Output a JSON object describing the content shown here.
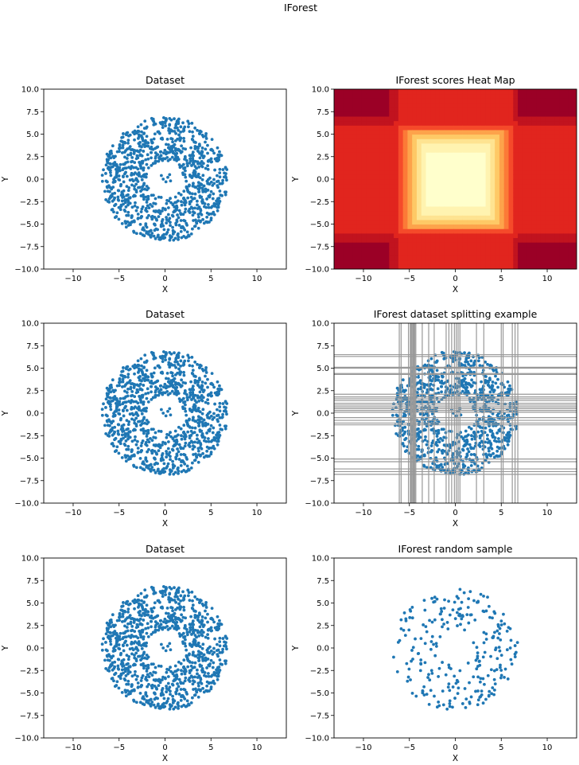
{
  "figure": {
    "suptitle": "IForest"
  },
  "colors": {
    "points": "#1f77b4",
    "split_lines": "#999999",
    "heat_levels": [
      "#ffffcc",
      "#fff3b0",
      "#fee391",
      "#fec966",
      "#fda34b",
      "#fc7a37",
      "#f54a2a",
      "#e1251e",
      "#c1131f",
      "#9b0026"
    ]
  },
  "chart_data": [
    {
      "type": "scatter",
      "title": "Dataset",
      "xlabel": "X",
      "ylabel": "Y",
      "xlim": [
        -13.2,
        13.2
      ],
      "ylim": [
        -10,
        10
      ],
      "xticks": [
        -10,
        -5,
        0,
        5,
        10
      ],
      "yticks": [
        -10.0,
        -7.5,
        -5.0,
        -2.5,
        0.0,
        2.5,
        5.0,
        7.5,
        10.0
      ],
      "xtick_labels": [
        "−10",
        "−5",
        "0",
        "5",
        "10"
      ],
      "ytick_labels": [
        "−10.0",
        "−7.5",
        "−5.0",
        "−2.5",
        "0.0",
        "2.5",
        "5.0",
        "7.5",
        "10.0"
      ],
      "series": [
        {
          "distribution": "annulus",
          "center": [
            0,
            0
          ],
          "inner_radius": 2.0,
          "outer_radius": 6.9,
          "n_points": 1000,
          "inner_cluster": [
            [
              -0.4,
              0.4
            ],
            [
              0.3,
              0.2
            ],
            [
              0.1,
              -0.3
            ],
            [
              0.6,
              -0.2
            ],
            [
              -0.2,
              0.0
            ],
            [
              0.5,
              0.5
            ]
          ]
        }
      ],
      "grid": false,
      "legend": "none"
    },
    {
      "type": "heatmap",
      "title": "IForest scores Heat Map",
      "xlabel": "X",
      "ylabel": "Y",
      "xlim": [
        -13.2,
        13.2
      ],
      "ylim": [
        -10,
        10
      ],
      "xticks": [
        -10,
        -5,
        0,
        5,
        10
      ],
      "yticks": [
        -10.0,
        -7.5,
        -5.0,
        -2.5,
        0.0,
        2.5,
        5.0,
        7.5,
        10.0
      ],
      "xtick_labels": [
        "−10",
        "−5",
        "0",
        "5",
        "10"
      ],
      "ytick_labels": [
        "−10.0",
        "−7.5",
        "−5.0",
        "−2.5",
        "0.0",
        "2.5",
        "5.0",
        "7.5",
        "10.0"
      ],
      "levels": 10,
      "score_range": [
        0.35,
        0.75
      ],
      "grid": false,
      "legend": "none"
    },
    {
      "type": "scatter",
      "title": "Dataset",
      "xlabel": "X",
      "ylabel": "Y",
      "xlim": [
        -13.2,
        13.2
      ],
      "ylim": [
        -10,
        10
      ],
      "xticks": [
        -10,
        -5,
        0,
        5,
        10
      ],
      "yticks": [
        -10.0,
        -7.5,
        -5.0,
        -2.5,
        0.0,
        2.5,
        5.0,
        7.5,
        10.0
      ],
      "xtick_labels": [
        "−10",
        "−5",
        "0",
        "5",
        "10"
      ],
      "ytick_labels": [
        "−10.0",
        "−7.5",
        "−5.0",
        "−2.5",
        "0.0",
        "2.5",
        "5.0",
        "7.5",
        "10.0"
      ],
      "series": [
        {
          "distribution": "annulus",
          "center": [
            0,
            0
          ],
          "inner_radius": 2.0,
          "outer_radius": 6.9,
          "n_points": 1000,
          "inner_cluster": [
            [
              -0.4,
              0.4
            ],
            [
              0.3,
              0.2
            ],
            [
              0.1,
              -0.3
            ],
            [
              0.6,
              -0.2
            ],
            [
              -0.2,
              0.0
            ],
            [
              0.5,
              0.5
            ]
          ]
        }
      ],
      "grid": false,
      "legend": "none"
    },
    {
      "type": "scatter",
      "title": "IForest dataset splitting example",
      "xlabel": "X",
      "ylabel": "Y",
      "xlim": [
        -13.2,
        13.2
      ],
      "ylim": [
        -10,
        10
      ],
      "xticks": [
        -10,
        -5,
        0,
        5,
        10
      ],
      "yticks": [
        -10.0,
        -7.5,
        -5.0,
        -2.5,
        0.0,
        2.5,
        5.0,
        7.5,
        10.0
      ],
      "xtick_labels": [
        "−10",
        "−5",
        "0",
        "5",
        "10"
      ],
      "ytick_labels": [
        "−10.0",
        "−7.5",
        "−5.0",
        "−2.5",
        "0.0",
        "2.5",
        "5.0",
        "7.5",
        "10.0"
      ],
      "series": [
        {
          "distribution": "annulus",
          "center": [
            0,
            0
          ],
          "inner_radius": 2.0,
          "outer_radius": 6.9,
          "n_points": 1000,
          "inner_cluster": [
            [
              -0.4,
              0.4
            ],
            [
              0.3,
              0.2
            ],
            [
              0.1,
              -0.3
            ],
            [
              0.6,
              -0.2
            ],
            [
              -0.2,
              0.0
            ],
            [
              0.5,
              0.5
            ]
          ]
        }
      ],
      "vertical_splits": [
        -6.1,
        -5.9,
        -5.1,
        -4.9,
        -4.8,
        -4.7,
        -4.6,
        -4.5,
        -4.4,
        -4.3,
        -3.6,
        -2.9,
        -2.3,
        -1.0,
        -0.7,
        -0.4,
        -0.1,
        0.1,
        0.3,
        0.5,
        2.3,
        3.1,
        5.0,
        5.2,
        6.2,
        6.5,
        6.8
      ],
      "horizontal_splits": [
        6.5,
        6.3,
        5.1,
        5.0,
        4.4,
        4.3,
        2.1,
        1.8,
        1.6,
        1.4,
        1.1,
        0.9,
        0.7,
        0.5,
        0.3,
        0.1,
        -0.5,
        -0.8,
        -1.1,
        -1.3,
        -5.1,
        -5.4,
        -6.2,
        -6.5,
        -6.8
      ],
      "grid": false,
      "legend": "none"
    },
    {
      "type": "scatter",
      "title": "Dataset",
      "xlabel": "X",
      "ylabel": "Y",
      "xlim": [
        -13.2,
        13.2
      ],
      "ylim": [
        -10,
        10
      ],
      "xticks": [
        -10,
        -5,
        0,
        5,
        10
      ],
      "yticks": [
        -10.0,
        -7.5,
        -5.0,
        -2.5,
        0.0,
        2.5,
        5.0,
        7.5,
        10.0
      ],
      "xtick_labels": [
        "−10",
        "−5",
        "0",
        "5",
        "10"
      ],
      "ytick_labels": [
        "−10.0",
        "−7.5",
        "−5.0",
        "−2.5",
        "0.0",
        "2.5",
        "5.0",
        "7.5",
        "10.0"
      ],
      "series": [
        {
          "distribution": "annulus",
          "center": [
            0,
            0
          ],
          "inner_radius": 2.0,
          "outer_radius": 6.9,
          "n_points": 1000,
          "inner_cluster": [
            [
              -0.4,
              0.4
            ],
            [
              0.3,
              0.2
            ],
            [
              0.1,
              -0.3
            ],
            [
              0.6,
              -0.2
            ],
            [
              -0.2,
              0.0
            ],
            [
              0.5,
              0.5
            ]
          ]
        }
      ],
      "grid": false,
      "legend": "none"
    },
    {
      "type": "scatter",
      "title": "IForest random sample",
      "xlabel": "X",
      "ylabel": "Y",
      "xlim": [
        -13.2,
        13.2
      ],
      "ylim": [
        -10,
        10
      ],
      "xticks": [
        -10,
        -5,
        0,
        5,
        10
      ],
      "yticks": [
        -10.0,
        -7.5,
        -5.0,
        -2.5,
        0.0,
        2.5,
        5.0,
        7.5,
        10.0
      ],
      "xtick_labels": [
        "−10",
        "−5",
        "0",
        "5",
        "10"
      ],
      "ytick_labels": [
        "−10.0",
        "−7.5",
        "−5.0",
        "−2.5",
        "0.0",
        "2.5",
        "5.0",
        "7.5",
        "10.0"
      ],
      "series": [
        {
          "distribution": "annulus_sample",
          "center": [
            0,
            0
          ],
          "inner_radius": 2.0,
          "outer_radius": 6.9,
          "n_points": 256
        }
      ],
      "grid": false,
      "legend": "none"
    }
  ]
}
